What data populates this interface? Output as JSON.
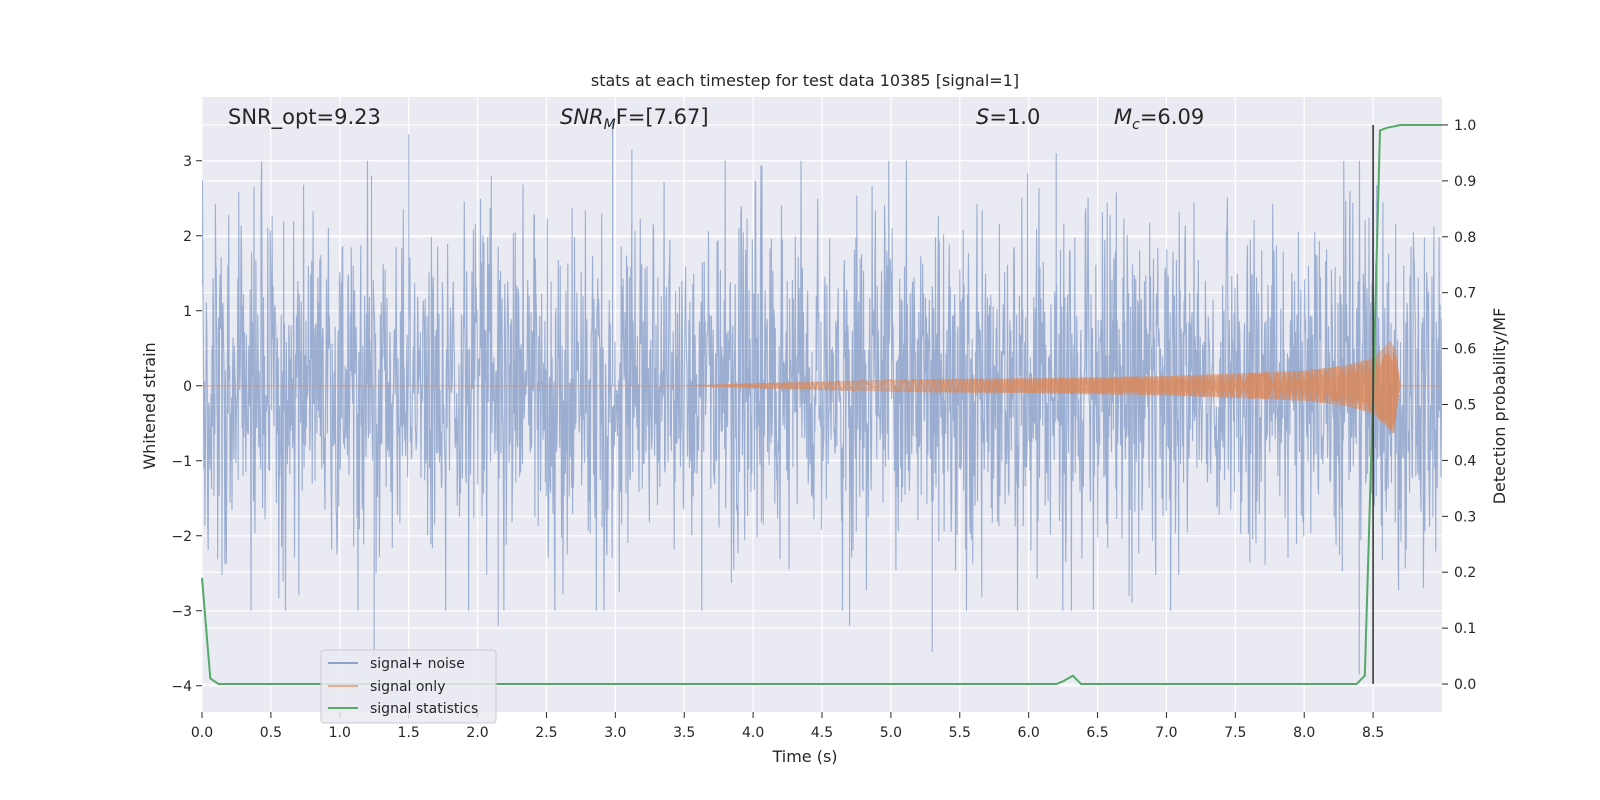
{
  "chart_data": {
    "type": "line",
    "title": "stats at each timestep for test data 10385 [signal=1]",
    "xlabel": "Time (s)",
    "ylabel": "Whitened strain",
    "ylabel_right": "Detection probability/MF",
    "xlim": [
      0.0,
      9.0
    ],
    "ylim": [
      -4.35,
      3.85
    ],
    "ylim_right": [
      -0.05,
      1.05
    ],
    "x_ticks": [
      "0.0",
      "0.5",
      "1.0",
      "1.5",
      "2.0",
      "2.5",
      "3.0",
      "3.5",
      "4.0",
      "4.5",
      "5.0",
      "5.5",
      "6.0",
      "6.5",
      "7.0",
      "7.5",
      "8.0",
      "8.5"
    ],
    "y_ticks": [
      "3",
      "2",
      "1",
      "0",
      "−1",
      "−2",
      "−3",
      "−4"
    ],
    "y_ticks_right": [
      "1.0",
      "0.9",
      "0.8",
      "0.7",
      "0.6",
      "0.5",
      "0.4",
      "0.3",
      "0.2",
      "0.1",
      "0.0"
    ],
    "grid": true,
    "legend_position": "lower-left",
    "annotations": {
      "snr_opt": "SNR_opt=9.23",
      "snr_mf_main": "SNR",
      "snr_mf_sub": "M",
      "snr_mf_tail": "F=[7.67]",
      "s_main": "S",
      "s_tail": "=1.0",
      "mc_main": "M",
      "mc_sub": "c",
      "mc_tail": "=6.09"
    },
    "detection_line_x": 8.5,
    "series": [
      {
        "name": "signal+ noise",
        "color": "#4c72b0",
        "envelope": {
          "x": [
            0.0,
            1.0,
            2.0,
            3.0,
            4.0,
            5.0,
            6.0,
            7.0,
            8.0,
            8.6,
            9.0
          ],
          "typical_abs": [
            1.6,
            1.6,
            1.6,
            1.6,
            1.6,
            1.6,
            1.6,
            1.6,
            1.6,
            1.6,
            1.6
          ]
        },
        "peaks": [
          {
            "x": 1.23,
            "y": 2.8
          },
          {
            "x": 1.25,
            "y": -3.6
          },
          {
            "x": 1.5,
            "y": 3.35
          },
          {
            "x": 2.1,
            "y": 2.8
          },
          {
            "x": 2.15,
            "y": -3.2
          },
          {
            "x": 2.98,
            "y": 3.55
          },
          {
            "x": 3.12,
            "y": 3.15
          },
          {
            "x": 4.7,
            "y": -3.2
          },
          {
            "x": 5.3,
            "y": -3.55
          },
          {
            "x": 6.2,
            "y": 3.1
          },
          {
            "x": 8.4,
            "y": -3.85
          },
          {
            "x": 8.5,
            "y": 3.4
          }
        ]
      },
      {
        "name": "signal only",
        "color": "#dd8452",
        "envelope": {
          "x": [
            0.0,
            3.5,
            4.0,
            5.0,
            6.0,
            7.0,
            8.0,
            8.3,
            8.5,
            8.6,
            8.65,
            8.7,
            9.0
          ],
          "amp": [
            0.0,
            0.0,
            0.03,
            0.08,
            0.1,
            0.13,
            0.2,
            0.27,
            0.37,
            0.55,
            0.65,
            0.0,
            0.0
          ]
        }
      },
      {
        "name": "signal statistics",
        "color": "#55a868",
        "x": [
          0.0,
          0.06,
          0.12,
          0.5,
          1.0,
          2.0,
          3.0,
          4.0,
          5.0,
          6.0,
          6.2,
          6.25,
          6.32,
          6.38,
          6.5,
          7.0,
          8.0,
          8.38,
          8.44,
          8.5,
          8.55,
          8.6,
          8.7,
          9.0
        ],
        "y": [
          0.19,
          0.01,
          0.0,
          0.0,
          0.0,
          0.0,
          0.0,
          0.0,
          0.0,
          0.0,
          0.0,
          0.005,
          0.015,
          0.0,
          0.0,
          0.0,
          0.0,
          0.0,
          0.015,
          0.52,
          0.99,
          0.995,
          1.0,
          1.0
        ]
      }
    ]
  }
}
